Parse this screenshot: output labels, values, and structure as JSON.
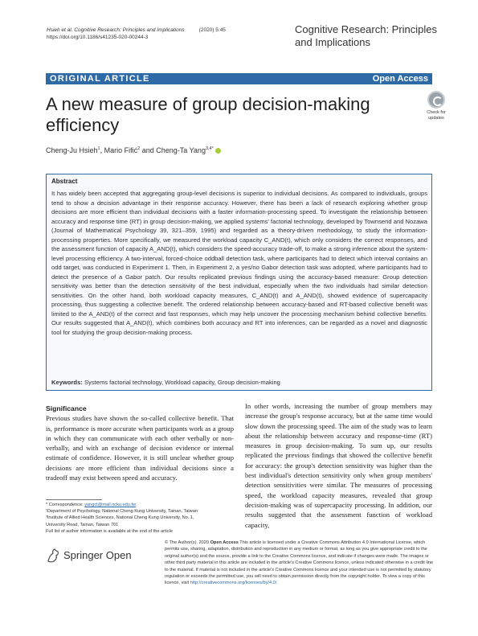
{
  "header": {
    "citation_authors": "Hsieh et al. Cognitive Research: Principles and Implications",
    "citation_year": "(2020) 5:45",
    "doi": "https://doi.org/10.1186/s41235-020-00244-3",
    "journal_name": "Cognitive Research: Principles and Implications"
  },
  "banner": {
    "label": "ORIGINAL ARTICLE",
    "access": "Open Access"
  },
  "title": "A new measure of group decision-making efficiency",
  "check_badge": {
    "line1": "Check for",
    "line2": "updates"
  },
  "authors": {
    "a1": "Cheng-Ju Hsieh",
    "a1_sup": "1",
    "a2": "Mario Fifić",
    "a2_sup": "2",
    "a3": "Cheng-Ta Yang",
    "a3_sup": "3,4*"
  },
  "abstract": {
    "heading": "Abstract",
    "body": "It has widely been accepted that aggregating group-level decisions is superior to individual decisions. As compared to individuals, groups tend to show a decision advantage in their response accuracy. However, there has been a lack of research exploring whether group decisions are more efficient than individual decisions with a faster information-processing speed. To investigate the relationship between accuracy and response time (RT) in group decision-making, we applied systems' factorial technology, developed by Townsend and Nozawa (Journal of Mathematical Psychology 39, 321–359, 1995) and regarded as a theory-driven methodology, to study the information-processing properties. More specifically, we measured the workload capacity C_AND(t), which only considers the correct responses, and the assessment function of capacity A_AND(t), which considers the speed-accuracy trade-off, to make a strong inference about the system-level processing efficiency. A two-interval, forced-choice oddball detection task, where participants had to detect which interval contains an odd target, was conducted in Experiment 1. Then, in Experiment 2, a yes/no Gabor detection task was adopted, where participants had to detect the presence of a Gabor patch. Our results replicated previous findings using the accuracy-based measure: Group detection sensitivity was better than the detection sensitivity of the best individual, especially when the two individuals had similar detection sensitivities. On the other hand, both workload capacity measures, C_AND(t) and A_AND(t), showed evidence of supercapacity processing, thus suggesting a collective benefit. The ordered relationship between accuracy-based and RT-based collective benefit was limited to the A_AND(t) of the correct and fast responses, which may help uncover the processing mechanism behind collective benefits. Our results suggested that A_AND(t), which combines both accuracy and RT into inferences, can be regarded as a novel and diagnostic tool for studying the group decision-making process.",
    "keywords_label": "Keywords:",
    "keywords": "Systems factorial technology, Workload capacity, Group decision-making"
  },
  "significance": {
    "heading": "Significance",
    "text": "Previous studies have shown the so-called collective benefit. That is, performance is more accurate when participants work as a group in which they can communicate with each other verbally or non-verbally, and with an exchange of decision evidence or internal estimate of confidence. However, it is still unclear whether group decisions are more efficient than individual decisions since a tradeoff may exist between speed and accuracy."
  },
  "right_column": {
    "text": "In other words, increasing the number of group members may increase the group's response accuracy, but at the same time would slow down the processing speed. The aim of the study was to learn about the relationship between accuracy and response-time (RT) measures in group decision-making. To sum up, our results replicated the previous findings that showed the collective benefit for accuracy: the group's detection sensitivity was higher than the best individual's detection sensitivity only when group members' detection sensitivities were similar. The measures of processing speed, the workload capacity measures, revealed that group decision-making was of supercapacity processing. In addition, our results suggested that the assessment function of workload capacity,"
  },
  "footnotes": {
    "correspondence_label": "* Correspondence:",
    "email": "yangct@mail.ncku.edu.tw",
    "aff1": "¹Department of Psychology, National Cheng Kung University, Tainan, Taiwan",
    "aff3": "³Institute of Allied Health Sciences, National Cheng Kung University, No. 1,",
    "aff3b": "University Road, Tainan, Taiwan 701",
    "full_list": "Full list of author information is available at the end of the article"
  },
  "publisher": {
    "name": "Springer Open"
  },
  "license": {
    "lead": "© The Author(s). 2020",
    "open_access": "Open Access",
    "text": "This article is licensed under a Creative Commons Attribution 4.0 International License, which permits use, sharing, adaptation, distribution and reproduction in any medium or format, as long as you give appropriate credit to the original author(s) and the source, provide a link to the Creative Commons licence, and indicate if changes were made. The images or other third party material in this article are included in the article's Creative Commons licence, unless indicated otherwise in a credit line to the material. If material is not included in the article's Creative Commons licence and your intended use is not permitted by statutory regulation or exceeds the permitted use, you will need to obtain permission directly from the copyright holder. To view a copy of this licence, visit",
    "url": "http://creativecommons.org/licenses/by/4.0/."
  },
  "colors": {
    "accent": "#2e6aa6",
    "abstract_bg": "#f7f9fc",
    "orcid": "#a6ce39"
  }
}
